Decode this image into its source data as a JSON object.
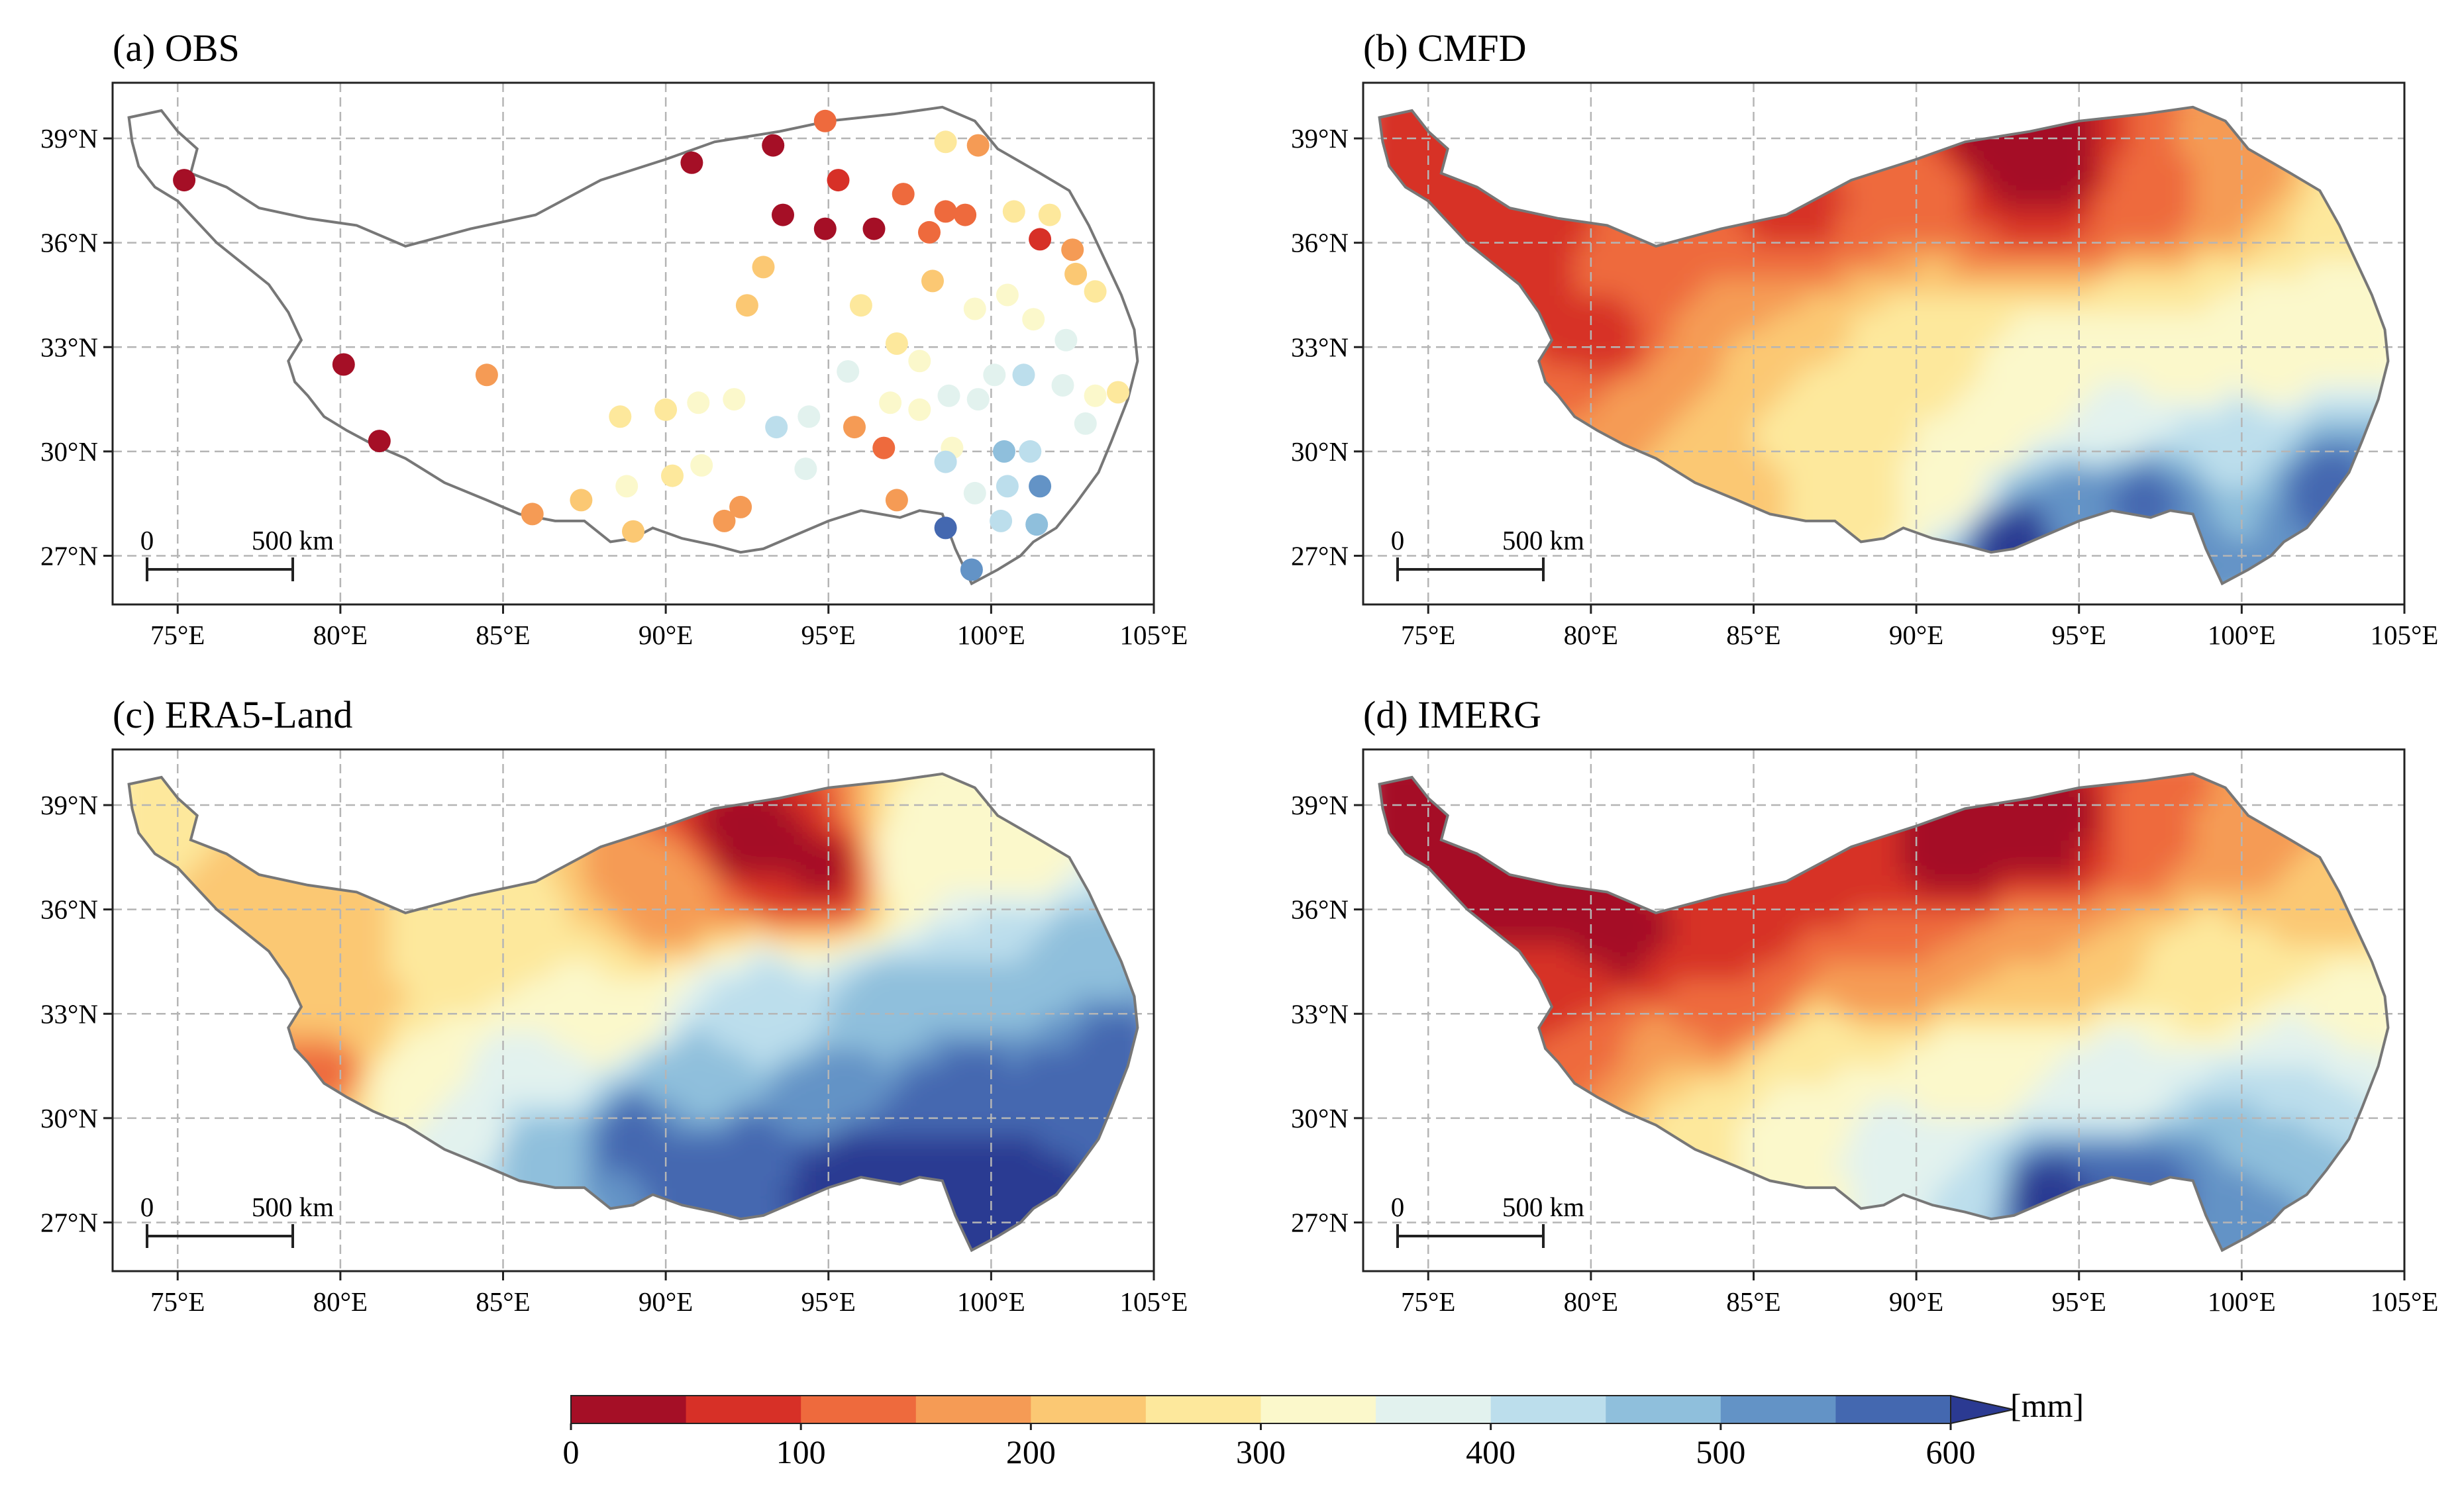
{
  "panels": [
    {
      "id": "a",
      "title": "(a) OBS",
      "kind": "stations"
    },
    {
      "id": "b",
      "title": "(b) CMFD",
      "kind": "field"
    },
    {
      "id": "c",
      "title": "(c) ERA5-Land",
      "kind": "field"
    },
    {
      "id": "d",
      "title": "(d) IMERG",
      "kind": "field"
    }
  ],
  "axes": {
    "lon_range": [
      73,
      105
    ],
    "lat_range": [
      25.6,
      40.6
    ],
    "lon_ticks": [
      75,
      80,
      85,
      90,
      95,
      100,
      105
    ],
    "lon_tick_labels": [
      "75°E",
      "80°E",
      "85°E",
      "90°E",
      "95°E",
      "100°E",
      "105°E"
    ],
    "lat_ticks": [
      39,
      36,
      33,
      30,
      27
    ],
    "lat_tick_labels": [
      "39°N",
      "36°N",
      "33°N",
      "30°N",
      "27°N"
    ],
    "grid": true
  },
  "scale_bar": {
    "start_label": "0",
    "end_label": "500 km"
  },
  "colorbar": {
    "levels": [
      0,
      50,
      100,
      150,
      200,
      250,
      300,
      350,
      400,
      450,
      500,
      550,
      600
    ],
    "tick_values": [
      0,
      100,
      200,
      300,
      400,
      500,
      600
    ],
    "tick_labels": [
      "0",
      "100",
      "200",
      "300",
      "400",
      "500",
      "600"
    ],
    "colors": [
      "#a50f26",
      "#d73027",
      "#ee6a3d",
      "#f59b55",
      "#fbc873",
      "#fde89c",
      "#fbf8cb",
      "#e2f2ee",
      "#bcdeec",
      "#8fbfdc",
      "#6393c6",
      "#4468b0",
      "#2b3a92"
    ],
    "extend": "max",
    "unit": "[mm]"
  },
  "stations": [
    {
      "lon": 75.2,
      "lat": 37.8,
      "v": 30
    },
    {
      "lon": 80.1,
      "lat": 32.5,
      "v": 40
    },
    {
      "lon": 81.2,
      "lat": 30.3,
      "v": 40
    },
    {
      "lon": 84.5,
      "lat": 32.2,
      "v": 170
    },
    {
      "lon": 90.8,
      "lat": 38.3,
      "v": 20
    },
    {
      "lon": 93.3,
      "lat": 38.8,
      "v": 20
    },
    {
      "lon": 93.6,
      "lat": 36.8,
      "v": 20
    },
    {
      "lon": 94.9,
      "lat": 39.5,
      "v": 110
    },
    {
      "lon": 95.3,
      "lat": 37.8,
      "v": 80
    },
    {
      "lon": 94.9,
      "lat": 36.4,
      "v": 20
    },
    {
      "lon": 96.4,
      "lat": 36.4,
      "v": 30
    },
    {
      "lon": 97.3,
      "lat": 37.4,
      "v": 130
    },
    {
      "lon": 98.1,
      "lat": 36.3,
      "v": 120
    },
    {
      "lon": 98.6,
      "lat": 36.9,
      "v": 140
    },
    {
      "lon": 99.2,
      "lat": 36.8,
      "v": 110
    },
    {
      "lon": 98.6,
      "lat": 38.9,
      "v": 260
    },
    {
      "lon": 99.6,
      "lat": 38.8,
      "v": 180
    },
    {
      "lon": 100.7,
      "lat": 36.9,
      "v": 280
    },
    {
      "lon": 101.5,
      "lat": 36.1,
      "v": 80
    },
    {
      "lon": 101.8,
      "lat": 36.8,
      "v": 260
    },
    {
      "lon": 102.5,
      "lat": 35.8,
      "v": 170
    },
    {
      "lon": 102.6,
      "lat": 35.1,
      "v": 230
    },
    {
      "lon": 103.2,
      "lat": 34.6,
      "v": 260
    },
    {
      "lon": 101.3,
      "lat": 33.8,
      "v": 330
    },
    {
      "lon": 102.3,
      "lat": 33.2,
      "v": 360
    },
    {
      "lon": 100.5,
      "lat": 34.5,
      "v": 300
    },
    {
      "lon": 99.5,
      "lat": 34.1,
      "v": 320
    },
    {
      "lon": 98.2,
      "lat": 34.9,
      "v": 220
    },
    {
      "lon": 97.1,
      "lat": 33.1,
      "v": 280
    },
    {
      "lon": 96.0,
      "lat": 34.2,
      "v": 270
    },
    {
      "lon": 95.6,
      "lat": 32.3,
      "v": 370
    },
    {
      "lon": 92.5,
      "lat": 34.2,
      "v": 200
    },
    {
      "lon": 93.0,
      "lat": 35.3,
      "v": 230
    },
    {
      "lon": 91.0,
      "lat": 31.4,
      "v": 330
    },
    {
      "lon": 92.1,
      "lat": 31.5,
      "v": 300
    },
    {
      "lon": 93.4,
      "lat": 30.7,
      "v": 420
    },
    {
      "lon": 90.0,
      "lat": 31.2,
      "v": 280
    },
    {
      "lon": 88.6,
      "lat": 31.0,
      "v": 260
    },
    {
      "lon": 94.4,
      "lat": 31.0,
      "v": 350
    },
    {
      "lon": 95.8,
      "lat": 30.7,
      "v": 190
    },
    {
      "lon": 96.7,
      "lat": 30.1,
      "v": 120
    },
    {
      "lon": 97.8,
      "lat": 31.2,
      "v": 300
    },
    {
      "lon": 98.7,
      "lat": 31.6,
      "v": 370
    },
    {
      "lon": 98.8,
      "lat": 30.1,
      "v": 300
    },
    {
      "lon": 99.6,
      "lat": 31.5,
      "v": 350
    },
    {
      "lon": 100.4,
      "lat": 30.0,
      "v": 470
    },
    {
      "lon": 101.2,
      "lat": 30.0,
      "v": 440
    },
    {
      "lon": 101.5,
      "lat": 29.0,
      "v": 530
    },
    {
      "lon": 100.5,
      "lat": 29.0,
      "v": 420
    },
    {
      "lon": 99.5,
      "lat": 28.8,
      "v": 380
    },
    {
      "lon": 98.6,
      "lat": 29.7,
      "v": 440
    },
    {
      "lon": 98.6,
      "lat": 27.8,
      "v": 560
    },
    {
      "lon": 99.4,
      "lat": 26.6,
      "v": 520
    },
    {
      "lon": 101.4,
      "lat": 27.9,
      "v": 480
    },
    {
      "lon": 100.1,
      "lat": 32.2,
      "v": 380
    },
    {
      "lon": 101.0,
      "lat": 32.2,
      "v": 400
    },
    {
      "lon": 102.2,
      "lat": 31.9,
      "v": 380
    },
    {
      "lon": 103.2,
      "lat": 31.6,
      "v": 320
    },
    {
      "lon": 103.9,
      "lat": 31.7,
      "v": 250
    },
    {
      "lon": 102.9,
      "lat": 30.8,
      "v": 360
    },
    {
      "lon": 97.1,
      "lat": 28.6,
      "v": 190
    },
    {
      "lon": 92.3,
      "lat": 28.4,
      "v": 190
    },
    {
      "lon": 91.8,
      "lat": 28.0,
      "v": 180
    },
    {
      "lon": 90.2,
      "lat": 29.3,
      "v": 250
    },
    {
      "lon": 89.0,
      "lat": 27.7,
      "v": 220
    },
    {
      "lon": 87.4,
      "lat": 28.6,
      "v": 210
    },
    {
      "lon": 85.9,
      "lat": 28.2,
      "v": 190
    },
    {
      "lon": 88.8,
      "lat": 29.0,
      "v": 340
    },
    {
      "lon": 91.1,
      "lat": 29.6,
      "v": 310
    },
    {
      "lon": 94.3,
      "lat": 29.5,
      "v": 380
    },
    {
      "lon": 97.8,
      "lat": 32.6,
      "v": 310
    },
    {
      "lon": 96.9,
      "lat": 31.4,
      "v": 340
    },
    {
      "lon": 100.3,
      "lat": 28.0,
      "v": 420
    }
  ]
}
